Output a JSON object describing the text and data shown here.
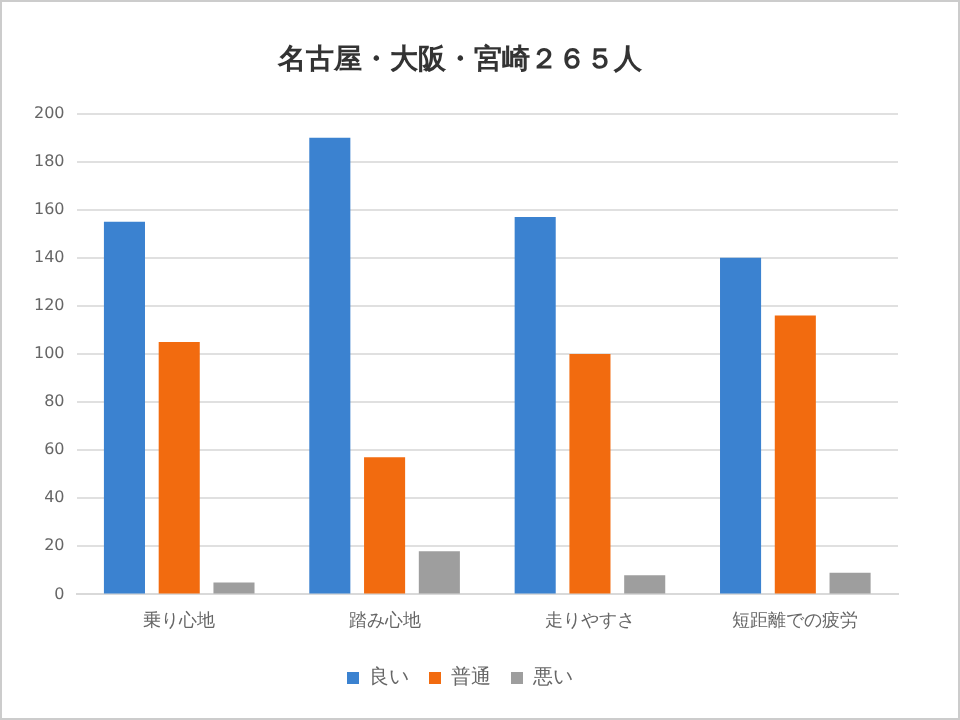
{
  "chart_data": {
    "type": "bar",
    "title": "名古屋・大阪・宮崎２６５人",
    "categories": [
      "乗り心地",
      "踏み心地",
      "走りやすさ",
      "短距離での疲労"
    ],
    "series": [
      {
        "name": "良い",
        "color": "#3b82d0",
        "values": [
          155,
          190,
          157,
          140
        ]
      },
      {
        "name": "普通",
        "color": "#f26b0f",
        "values": [
          105,
          57,
          100,
          116
        ]
      },
      {
        "name": "悪い",
        "color": "#9e9e9e",
        "values": [
          5,
          18,
          8,
          9
        ]
      }
    ],
    "ylim": [
      0,
      200
    ],
    "yticks": [
      0,
      20,
      40,
      60,
      80,
      100,
      120,
      140,
      160,
      180,
      200
    ],
    "grid": "y",
    "legend": "bottom"
  }
}
